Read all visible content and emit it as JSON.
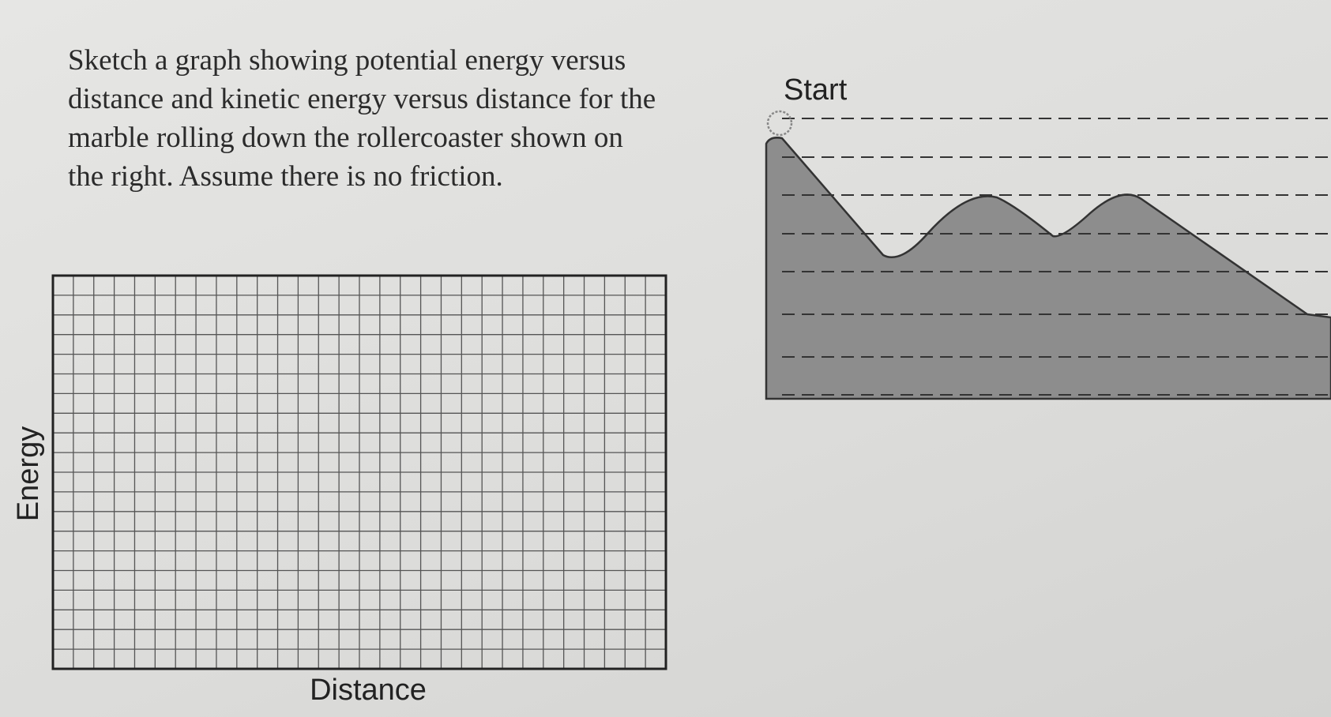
{
  "question": {
    "lines": [
      "Sketch a graph showing potential energy versus",
      "distance and kinetic energy versus distance for the",
      "marble rolling down the rollercoaster shown on",
      "the right. Assume there is no friction."
    ]
  },
  "graph": {
    "y_label": "Energy",
    "x_label": "Distance"
  },
  "coaster": {
    "label": "Start"
  }
}
